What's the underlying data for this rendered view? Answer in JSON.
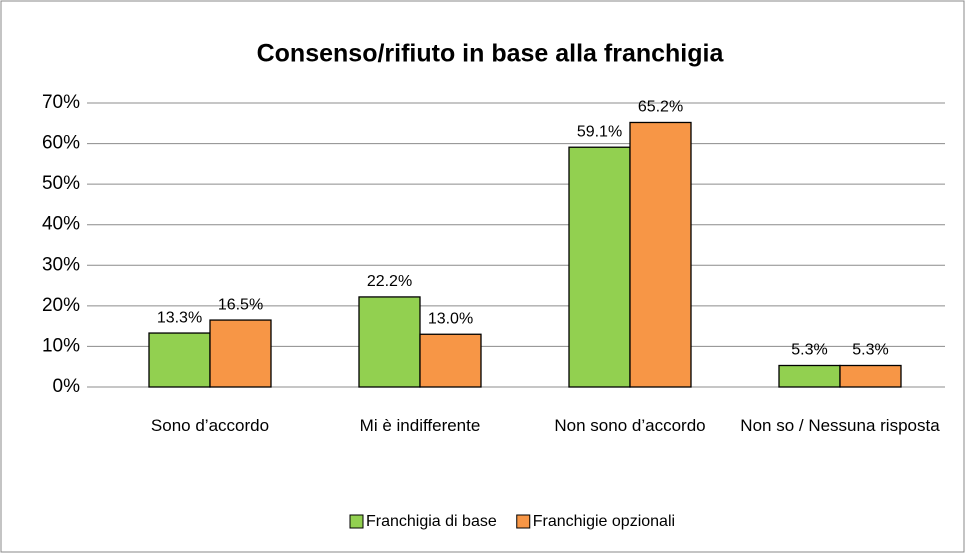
{
  "chart_data": {
    "type": "bar",
    "title": "Consenso/rifiuto in base alla franchigia",
    "categories": [
      "Sono d’accordo",
      "Mi è indifferente",
      "Non sono d’accordo",
      "Non so / Nessuna risposta"
    ],
    "series": [
      {
        "name": "Franchigia di base",
        "color": "#92d050",
        "values": [
          13.3,
          22.2,
          59.1,
          5.3
        ],
        "value_labels": [
          "13.3%",
          "22.2%",
          "59.1%",
          "5.3%"
        ]
      },
      {
        "name": "Franchigie opzionali",
        "color": "#f79646",
        "values": [
          16.5,
          13.0,
          65.2,
          5.3
        ],
        "value_labels": [
          "16.5%",
          "13.0%",
          "65.2%",
          "5.3%"
        ]
      }
    ],
    "ylim": [
      0,
      70
    ],
    "yticks": [
      {
        "value": 0,
        "label": "0%"
      },
      {
        "value": 10,
        "label": "10%"
      },
      {
        "value": 20,
        "label": "20%"
      },
      {
        "value": 30,
        "label": "30%"
      },
      {
        "value": 40,
        "label": "40%"
      },
      {
        "value": 50,
        "label": "50%"
      },
      {
        "value": 60,
        "label": "60%"
      },
      {
        "value": 70,
        "label": "70%"
      }
    ],
    "grid": true,
    "legend": "bottom"
  }
}
